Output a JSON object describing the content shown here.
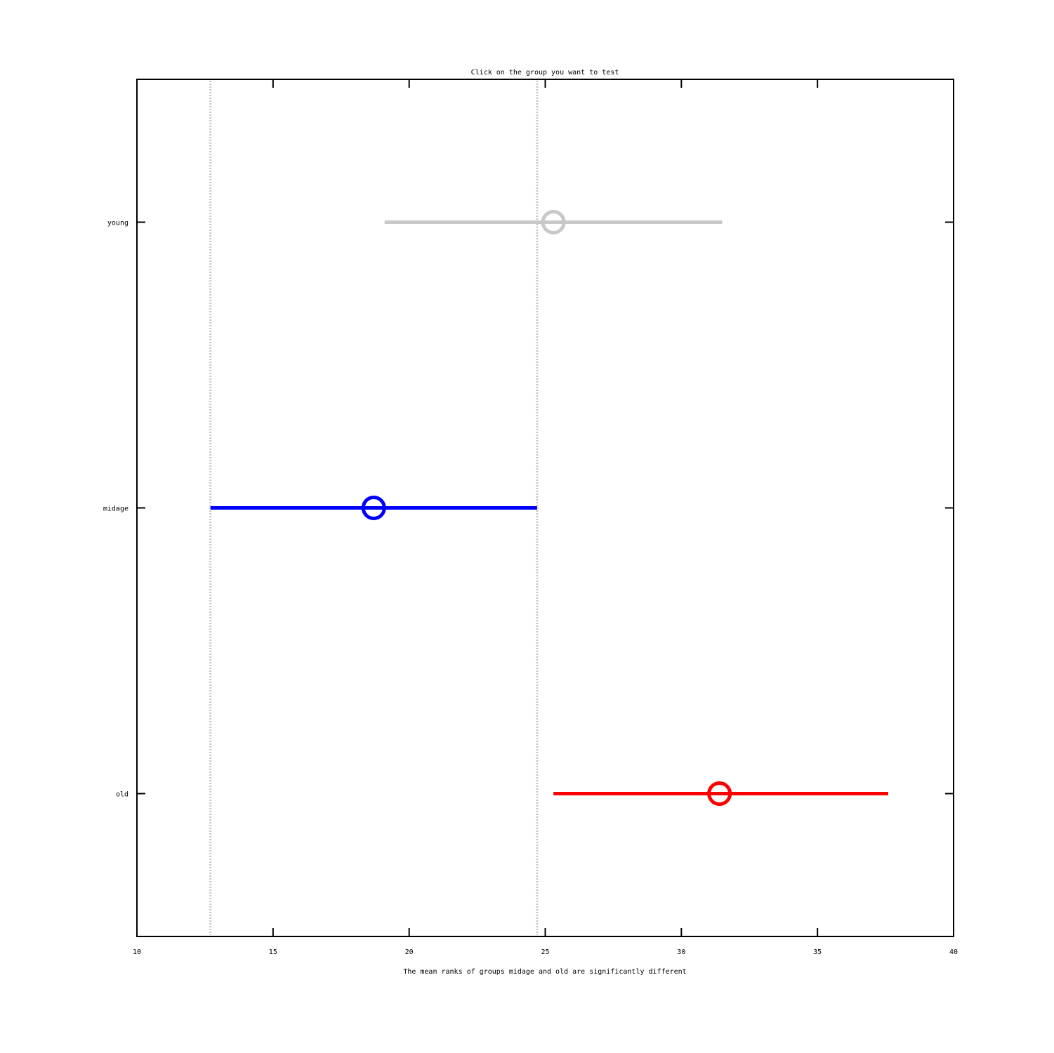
{
  "chart_data": {
    "type": "interval",
    "title": "Click on the group you want to test",
    "xlabel": "The mean ranks of groups midage and old are significantly different",
    "ylabel": "",
    "xlim": [
      10,
      40
    ],
    "x_ticks": [
      10,
      15,
      20,
      25,
      30,
      35,
      40
    ],
    "x_tick_labels": [
      "10",
      "15",
      "20",
      "25",
      "30",
      "35",
      "40"
    ],
    "categories": [
      "young",
      "midage",
      "old"
    ],
    "intervals": [
      {
        "label": "young",
        "low": 19.1,
        "mean": 25.3,
        "high": 31.5,
        "color": "#c8c8c8"
      },
      {
        "label": "midage",
        "low": 12.7,
        "mean": 18.7,
        "high": 24.7,
        "color": "#0000ff"
      },
      {
        "label": "old",
        "low": 25.3,
        "mean": 31.4,
        "high": 37.6,
        "color": "#ff0000"
      }
    ],
    "reference_lines": [
      12.7,
      24.7
    ],
    "reference_line_color": "#c8c8c8",
    "grid": false,
    "legend": "none"
  }
}
